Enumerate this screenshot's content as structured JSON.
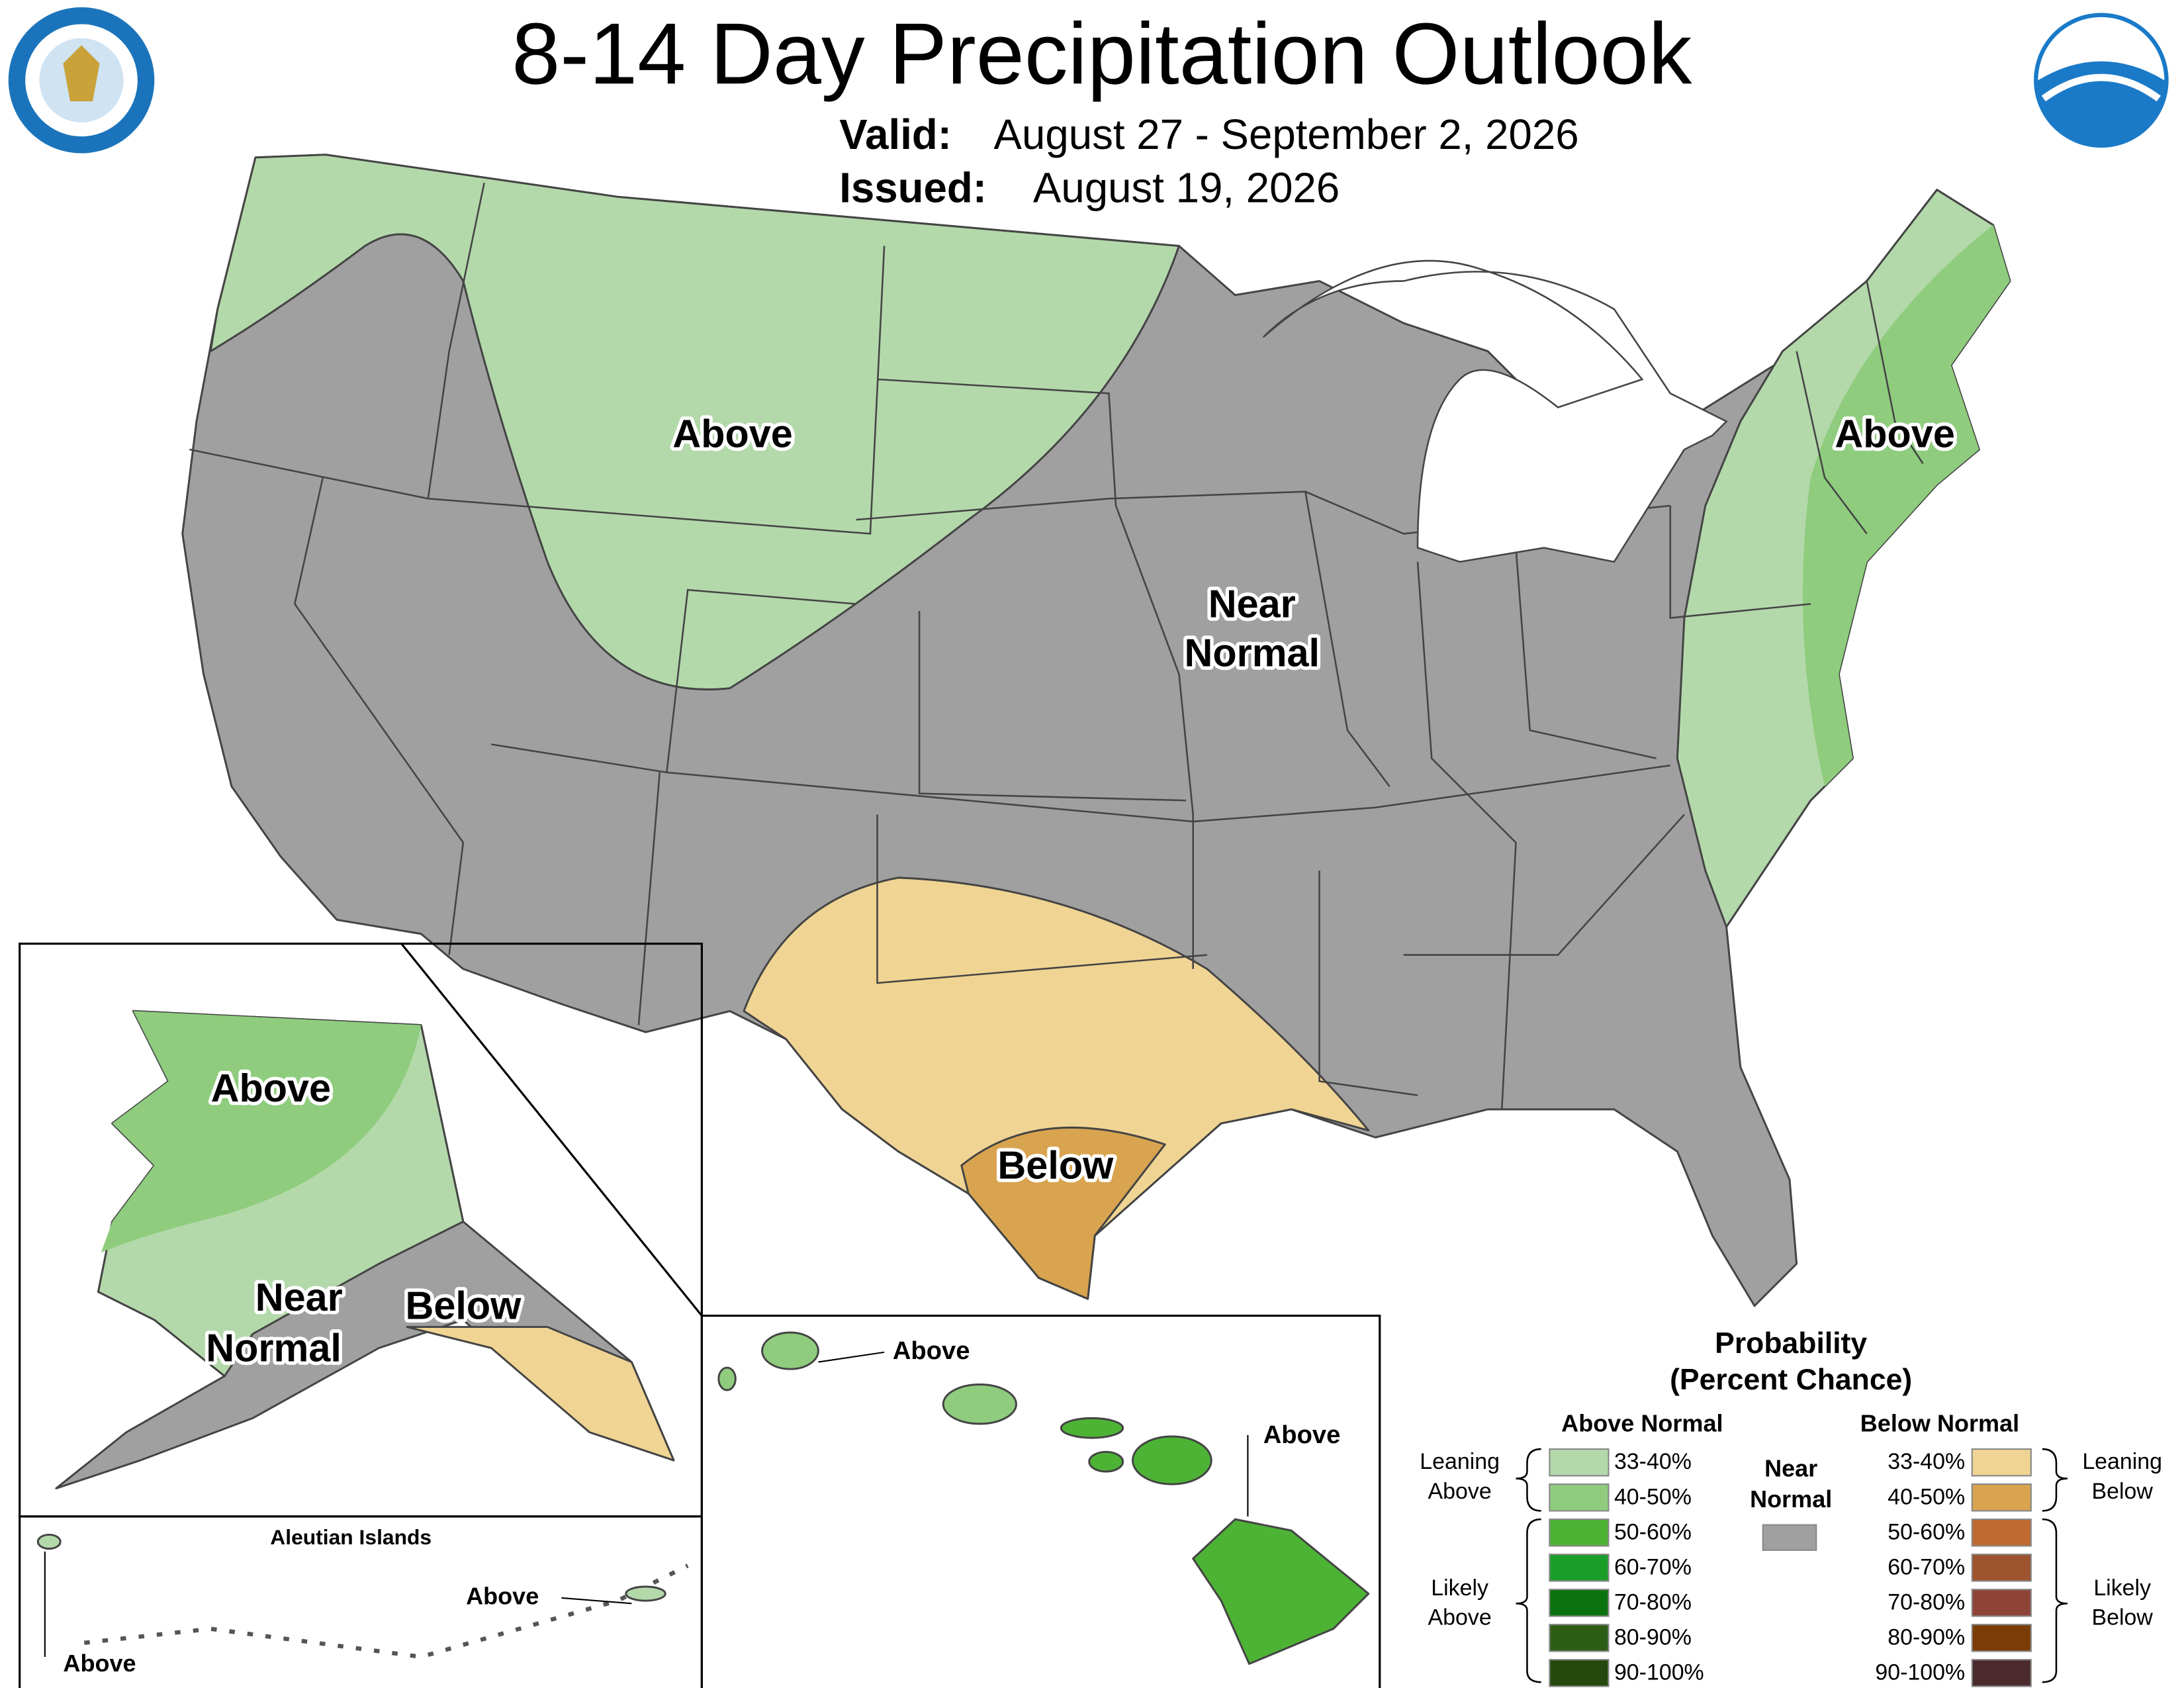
{
  "header": {
    "title": "8-14 Day Precipitation Outlook",
    "valid_label": "Valid:",
    "valid": "August 27 - September 2, 2026",
    "issued_label": "Issued:",
    "issued": "August 19, 2026"
  },
  "conus_labels": {
    "northwest": "Above",
    "northeast": "Above",
    "central": [
      "Near",
      "Normal"
    ],
    "texas": "Below"
  },
  "alaska_labels": {
    "above": "Above",
    "near": [
      "Near",
      "Normal"
    ],
    "below": "Below"
  },
  "aleutian": {
    "title": "Aleutian Islands",
    "west": "Above",
    "east": "Above"
  },
  "hawaii_labels": {
    "kauai": "Above",
    "big_island": "Above"
  },
  "legend": {
    "title": [
      "Probability",
      "(Percent Chance)"
    ],
    "above_normal": {
      "title": "Above Normal",
      "bins": [
        {
          "label": "33-40%",
          "color": "#b3d9aa"
        },
        {
          "label": "40-50%",
          "color": "#8fcc7e"
        },
        {
          "label": "50-60%",
          "color": "#4db335"
        },
        {
          "label": "60-70%",
          "color": "#1a9e2a"
        },
        {
          "label": "70-80%",
          "color": "#0a730f"
        },
        {
          "label": "80-90%",
          "color": "#2d5e16"
        },
        {
          "label": "90-100%",
          "color": "#234a0c"
        }
      ],
      "leaning": [
        "Leaning",
        "Above"
      ],
      "likely": [
        "Likely",
        "Above"
      ]
    },
    "near_normal": {
      "title": [
        "Near",
        "Normal"
      ],
      "color": "#a0a0a0"
    },
    "below_normal": {
      "title": "Below Normal",
      "bins": [
        {
          "label": "33-40%",
          "color": "#f0d493"
        },
        {
          "label": "40-50%",
          "color": "#d9a44f"
        },
        {
          "label": "50-60%",
          "color": "#bf6a30"
        },
        {
          "label": "60-70%",
          "color": "#9c532e"
        },
        {
          "label": "70-80%",
          "color": "#8f4338"
        },
        {
          "label": "80-90%",
          "color": "#7a3d06"
        },
        {
          "label": "90-100%",
          "color": "#4a2a2c"
        }
      ],
      "leaning": [
        "Leaning",
        "Below"
      ],
      "likely": [
        "Likely",
        "Below"
      ]
    }
  }
}
